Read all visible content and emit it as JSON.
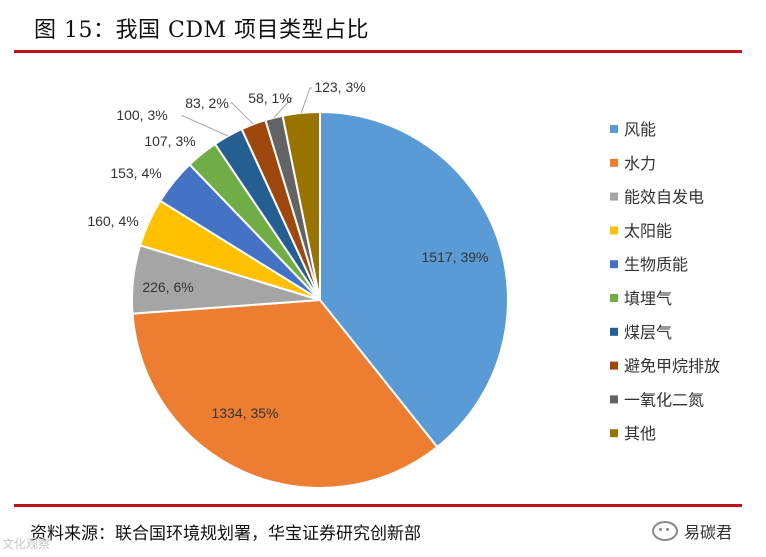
{
  "header": {
    "title": "图 15：我国 CDM 项目类型占比"
  },
  "footer": {
    "source": "资料来源：联合国环境规划署，华宝证券研究创新部",
    "watermark_right": "易碳君",
    "watermark_left": "文化观察"
  },
  "chart_data": {
    "type": "pie",
    "title": "",
    "legend_position": "right",
    "slices": [
      {
        "name": "风能",
        "value": 1517,
        "percent": "39%",
        "label": "1517, 39%",
        "color": "#5b9bd5"
      },
      {
        "name": "水力",
        "value": 1334,
        "percent": "35%",
        "label": "1334, 35%",
        "color": "#ed7d31"
      },
      {
        "name": "能效自发电",
        "value": 226,
        "percent": "6%",
        "label": "226, 6%",
        "color": "#a5a5a5"
      },
      {
        "name": "太阳能",
        "value": 160,
        "percent": "4%",
        "label": "160, 4%",
        "color": "#ffc000"
      },
      {
        "name": "生物质能",
        "value": 153,
        "percent": "4%",
        "label": "153, 4%",
        "color": "#4472c4"
      },
      {
        "name": "填埋气",
        "value": 107,
        "percent": "3%",
        "label": "107, 3%",
        "color": "#70ad47"
      },
      {
        "name": "煤层气",
        "value": 100,
        "percent": "3%",
        "label": "100, 3%",
        "color": "#255e91"
      },
      {
        "name": "避免甲烷排放",
        "value": 83,
        "percent": "2%",
        "label": "83, 2%",
        "color": "#9e480e"
      },
      {
        "name": "一氧化二氮",
        "value": 58,
        "percent": "1%",
        "label": "58, 1%",
        "color": "#636363"
      },
      {
        "name": "其他",
        "value": 123,
        "percent": "3%",
        "label": "123, 3%",
        "color": "#997300"
      }
    ]
  }
}
